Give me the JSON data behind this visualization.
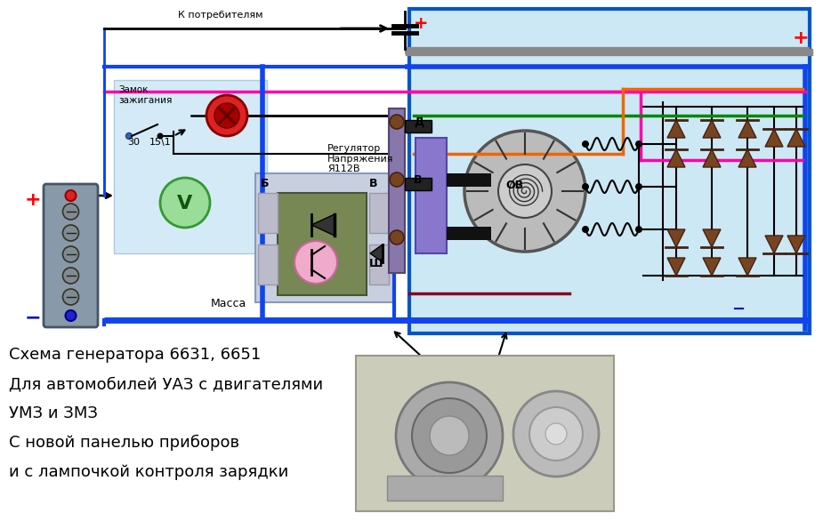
{
  "bg_color": "#ffffff",
  "diagram_bg": "#cce8f4",
  "diagram_border": "#0055cc",
  "text_lines": [
    "Схема генератора 6631, 6651",
    "Для автомобилей УАЗ с двигателями",
    "УМЗ и ЗМЗ",
    "С новой панелью приборов",
    "и с лампочкой контроля зарядки"
  ],
  "label_k_potrebitelyam": "К потребителям",
  "label_zamok": "Замок\nзажигания",
  "label_massa": "Масса",
  "label_regulyator": "Регулятор\nНапряжения\nЯ112В",
  "label_D": "Д",
  "label_B_conn": "В",
  "label_B_reg": "В",
  "label_Б": "Б",
  "label_Sh": "Ш",
  "label_OV": "ОВ",
  "label_30": "30",
  "label_151": "15\\1",
  "plus_color": "#ff0000",
  "minus_color": "#0000bb",
  "wire_blue": "#1144ee",
  "wire_green": "#008800",
  "wire_pink": "#ff00aa",
  "wire_orange": "#ee6600",
  "wire_gray": "#888888",
  "wire_darkred": "#880022",
  "diode_color": "#774422"
}
